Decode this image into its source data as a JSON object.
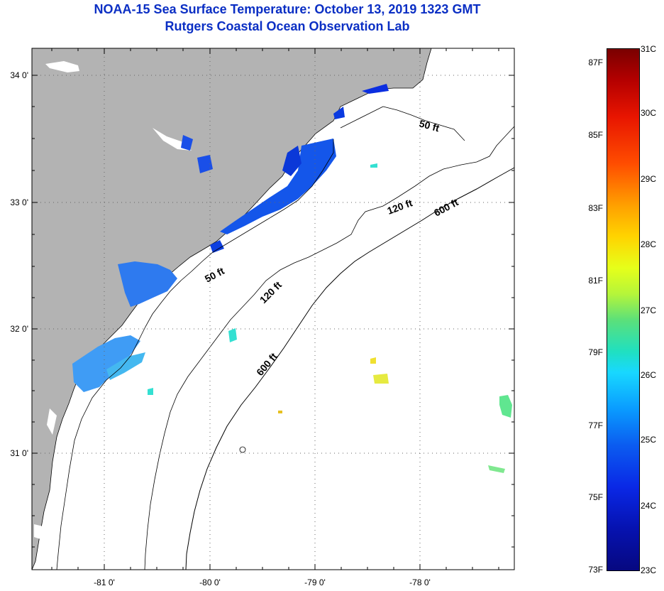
{
  "title": {
    "line1": "NOAA-15 Sea Surface Temperature:  October 13, 2019 1323 GMT",
    "line2": "Rutgers Coastal Ocean Observation Lab"
  },
  "map": {
    "lat_labels": [
      "34 0'",
      "33 0'",
      "32 0'",
      "31 0'"
    ],
    "lon_labels": [
      "-81 0'",
      "-80 0'",
      "-79 0'",
      "-78 0'"
    ],
    "contour_labels": [
      "50 ft",
      "120 ft",
      "600 ft",
      "50 ft",
      "120 ft",
      "600 ft"
    ],
    "colors": {
      "land": "#b3b3b3",
      "ocean": "#ffffff",
      "grid": "#000000"
    }
  },
  "colorbar": {
    "fahrenheit": [
      "87F",
      "85F",
      "83F",
      "81F",
      "79F",
      "77F",
      "75F",
      "73F"
    ],
    "celsius": [
      "31C",
      "30C",
      "29C",
      "28C",
      "27C",
      "26C",
      "25C",
      "24C",
      "23C"
    ],
    "colors": [
      "#7a0000",
      "#e81500",
      "#ffa000",
      "#e6ff1a",
      "#5be07a",
      "#18d8ff",
      "#0a9cff",
      "#0a28e6",
      "#060880"
    ]
  }
}
